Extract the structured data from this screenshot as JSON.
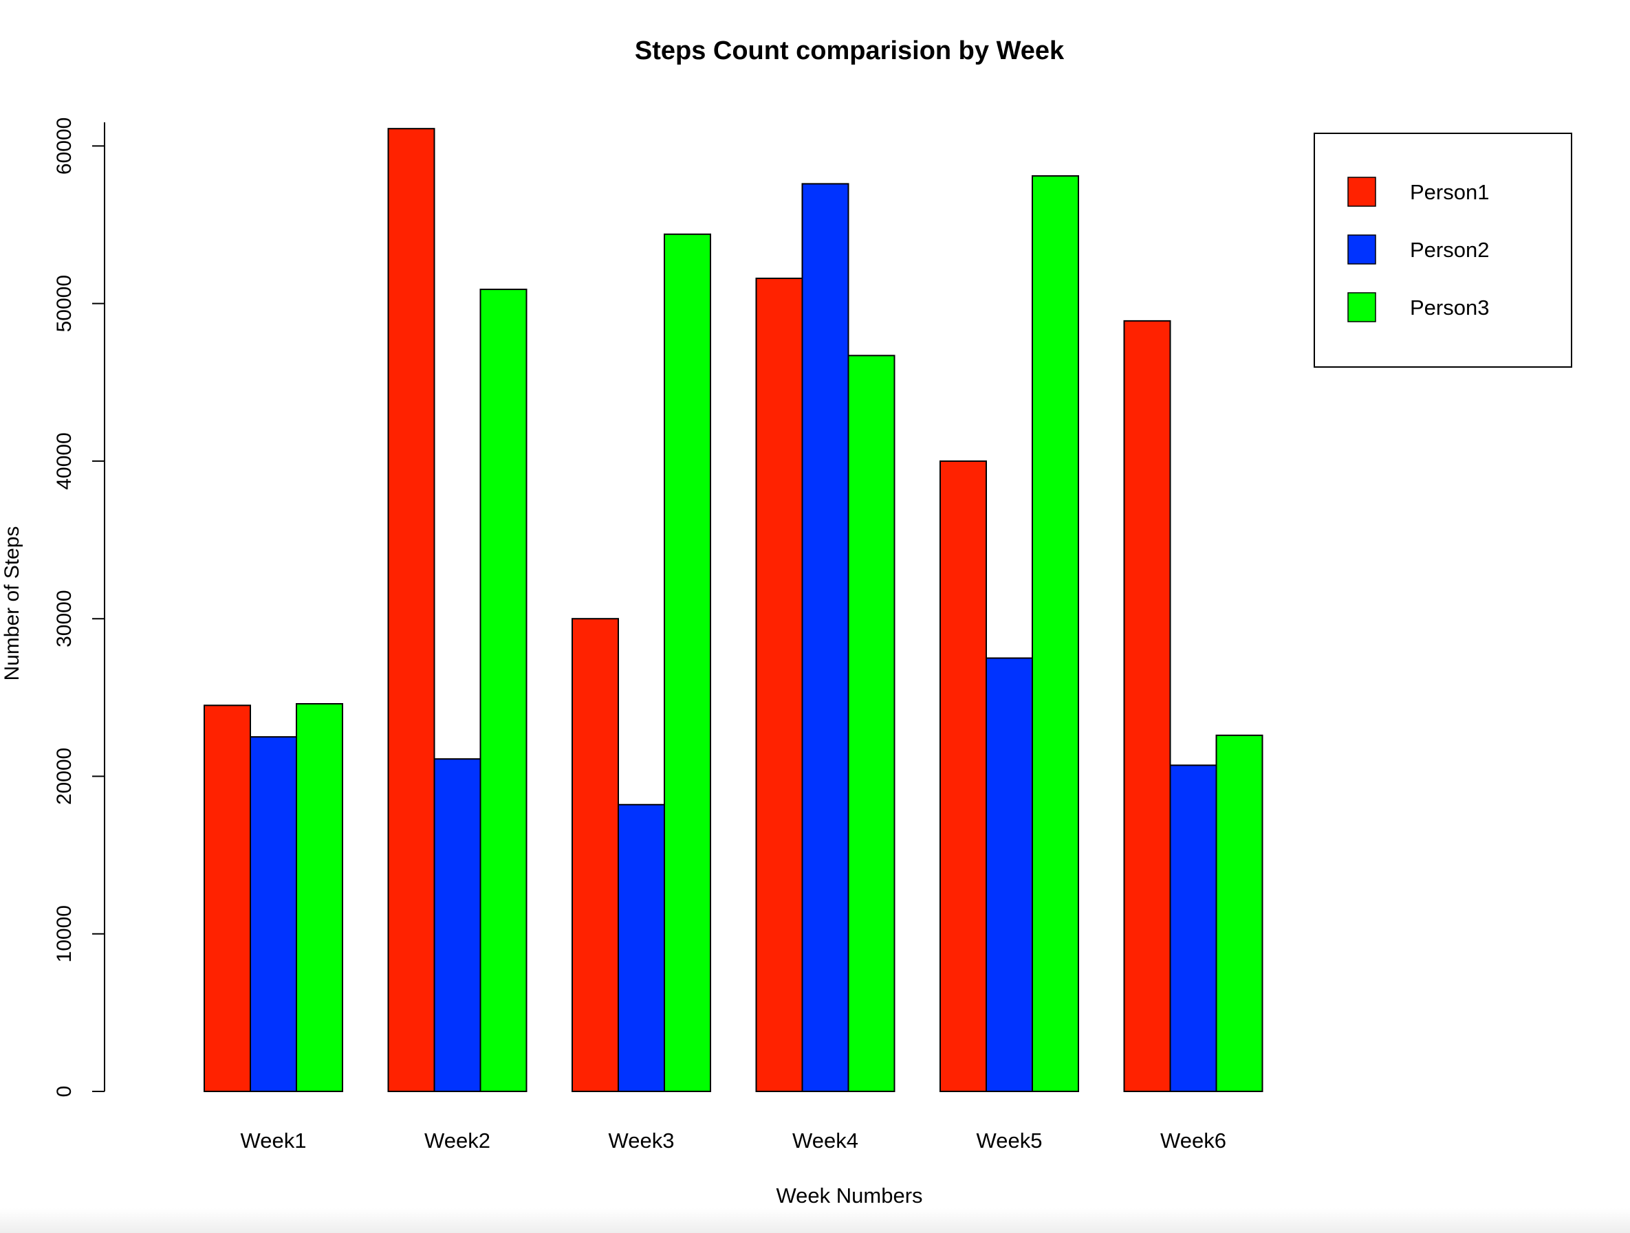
{
  "chart_data": {
    "type": "bar",
    "title": "Steps Count comparision by Week",
    "xlabel": "Week Numbers",
    "ylabel": "Number of Steps",
    "categories": [
      "Week1",
      "Week2",
      "Week3",
      "Week4",
      "Week5",
      "Week6"
    ],
    "yticks": [
      "0",
      "10000",
      "20000",
      "30000",
      "40000",
      "50000",
      "60000"
    ],
    "ylim": [
      0,
      60000
    ],
    "grid": false,
    "legend_position": "top-right",
    "series": [
      {
        "name": "Person1",
        "color": "#ff2200",
        "values": [
          24500,
          61100,
          30000,
          51600,
          40000,
          48900
        ]
      },
      {
        "name": "Person2",
        "color": "#0033ff",
        "values": [
          22500,
          21100,
          18200,
          57600,
          27500,
          20700
        ]
      },
      {
        "name": "Person3",
        "color": "#00ff00",
        "values": [
          24600,
          50900,
          54400,
          46700,
          58100,
          22600
        ]
      }
    ]
  }
}
